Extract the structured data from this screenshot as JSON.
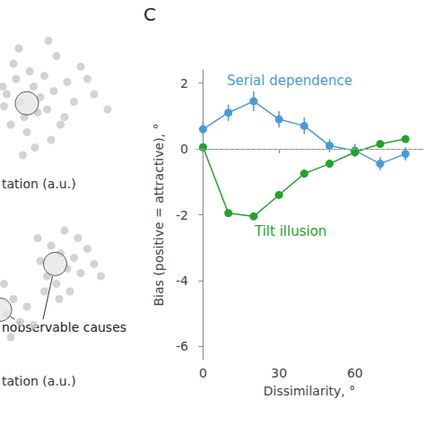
{
  "chart_data": [
    {
      "type": "scatter",
      "xlabel": "tation (a.u.)",
      "tick_labels": false,
      "grid": false,
      "xlim": [
        0,
        100
      ],
      "ylim": [
        0,
        100
      ],
      "color": "#c8c8c8",
      "x": [
        5,
        12,
        18,
        25,
        30,
        35,
        8,
        15,
        22,
        28,
        40,
        45,
        50,
        3,
        10,
        20,
        33,
        38,
        55,
        60,
        70,
        80,
        14,
        26,
        42,
        2,
        48,
        65,
        17,
        36
      ],
      "y": [
        50,
        60,
        35,
        55,
        48,
        40,
        30,
        45,
        65,
        38,
        52,
        30,
        58,
        42,
        70,
        25,
        62,
        20,
        45,
        68,
        50,
        40,
        80,
        15,
        75,
        55,
        35,
        60,
        10,
        85
      ],
      "causes": {
        "x": [
          20
        ],
        "y": [
          44
        ]
      }
    },
    {
      "type": "scatter",
      "xlabel": "tation (a.u.)",
      "tick_labels": false,
      "grid": false,
      "xlim": [
        0,
        100
      ],
      "ylim": [
        0,
        100
      ],
      "color": "#c8c8c8",
      "x": [
        30,
        35,
        45,
        50,
        55,
        38,
        42,
        60,
        28,
        48,
        52,
        65,
        70,
        33,
        5,
        10,
        15,
        3,
        20,
        25,
        8,
        58,
        44,
        75
      ],
      "y": [
        70,
        60,
        75,
        65,
        72,
        80,
        55,
        62,
        85,
        90,
        50,
        78,
        68,
        50,
        35,
        45,
        30,
        55,
        40,
        28,
        20,
        85,
        45,
        60
      ],
      "causes": {
        "x": [
          41,
          0
        ],
        "y": [
          68,
          38
        ]
      },
      "annotation": "nobservable causes"
    },
    {
      "type": "line",
      "panel": "C",
      "xlabel": "Dissimilarity, °",
      "ylabel": "Bias (positive = attractive), °",
      "xlim": [
        -3,
        87
      ],
      "ylim": [
        -6.4,
        2.4
      ],
      "xticks": [
        0,
        30,
        60
      ],
      "yticks": [
        -6,
        -4,
        -2,
        0,
        2
      ],
      "baseline": 0,
      "grid": false,
      "series": [
        {
          "name": "Serial dependence",
          "color": "#4a9ad6",
          "marker": "circle",
          "x": [
            0,
            10,
            20,
            30,
            40,
            50,
            60,
            70,
            80
          ],
          "values": [
            0.6,
            1.1,
            1.45,
            0.9,
            0.7,
            0.1,
            -0.05,
            -0.45,
            -0.15
          ],
          "errors": [
            0.25,
            0.25,
            0.3,
            0.25,
            0.25,
            0.2,
            0.2,
            0.2,
            0.2
          ]
        },
        {
          "name": "Tilt illusion",
          "color": "#24a32a",
          "marker": "circle",
          "x": [
            0,
            10,
            20,
            30,
            40,
            50,
            60,
            70,
            80
          ],
          "values": [
            0.05,
            -1.95,
            -2.05,
            -1.4,
            -0.75,
            -0.45,
            -0.1,
            0.15,
            0.3
          ]
        }
      ]
    }
  ]
}
